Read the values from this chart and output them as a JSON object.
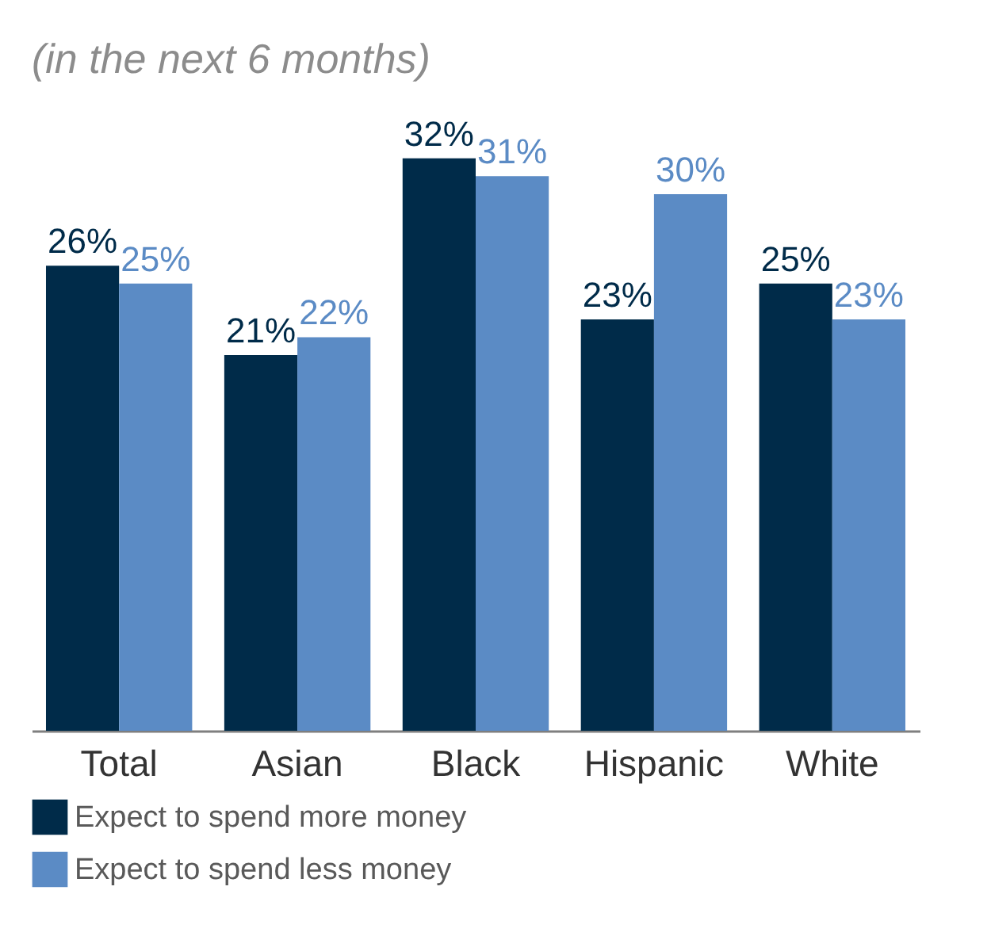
{
  "chart_data": {
    "type": "bar",
    "title": "(in the next 6 months)",
    "categories": [
      "Total",
      "Asian",
      "Black",
      "Hispanic",
      "White"
    ],
    "series": [
      {
        "name": "Expect to spend more money",
        "color": "#002b49",
        "values": [
          26,
          21,
          32,
          23,
          25
        ],
        "value_labels": [
          "26%",
          "21%",
          "32%",
          "23%",
          "25%"
        ]
      },
      {
        "name": "Expect to spend less money",
        "color": "#5b8bc5",
        "values": [
          25,
          22,
          31,
          30,
          23
        ],
        "value_labels": [
          "25%",
          "22%",
          "31%",
          "30%",
          "23%"
        ]
      }
    ],
    "legend": "bottom",
    "grid": false
  }
}
